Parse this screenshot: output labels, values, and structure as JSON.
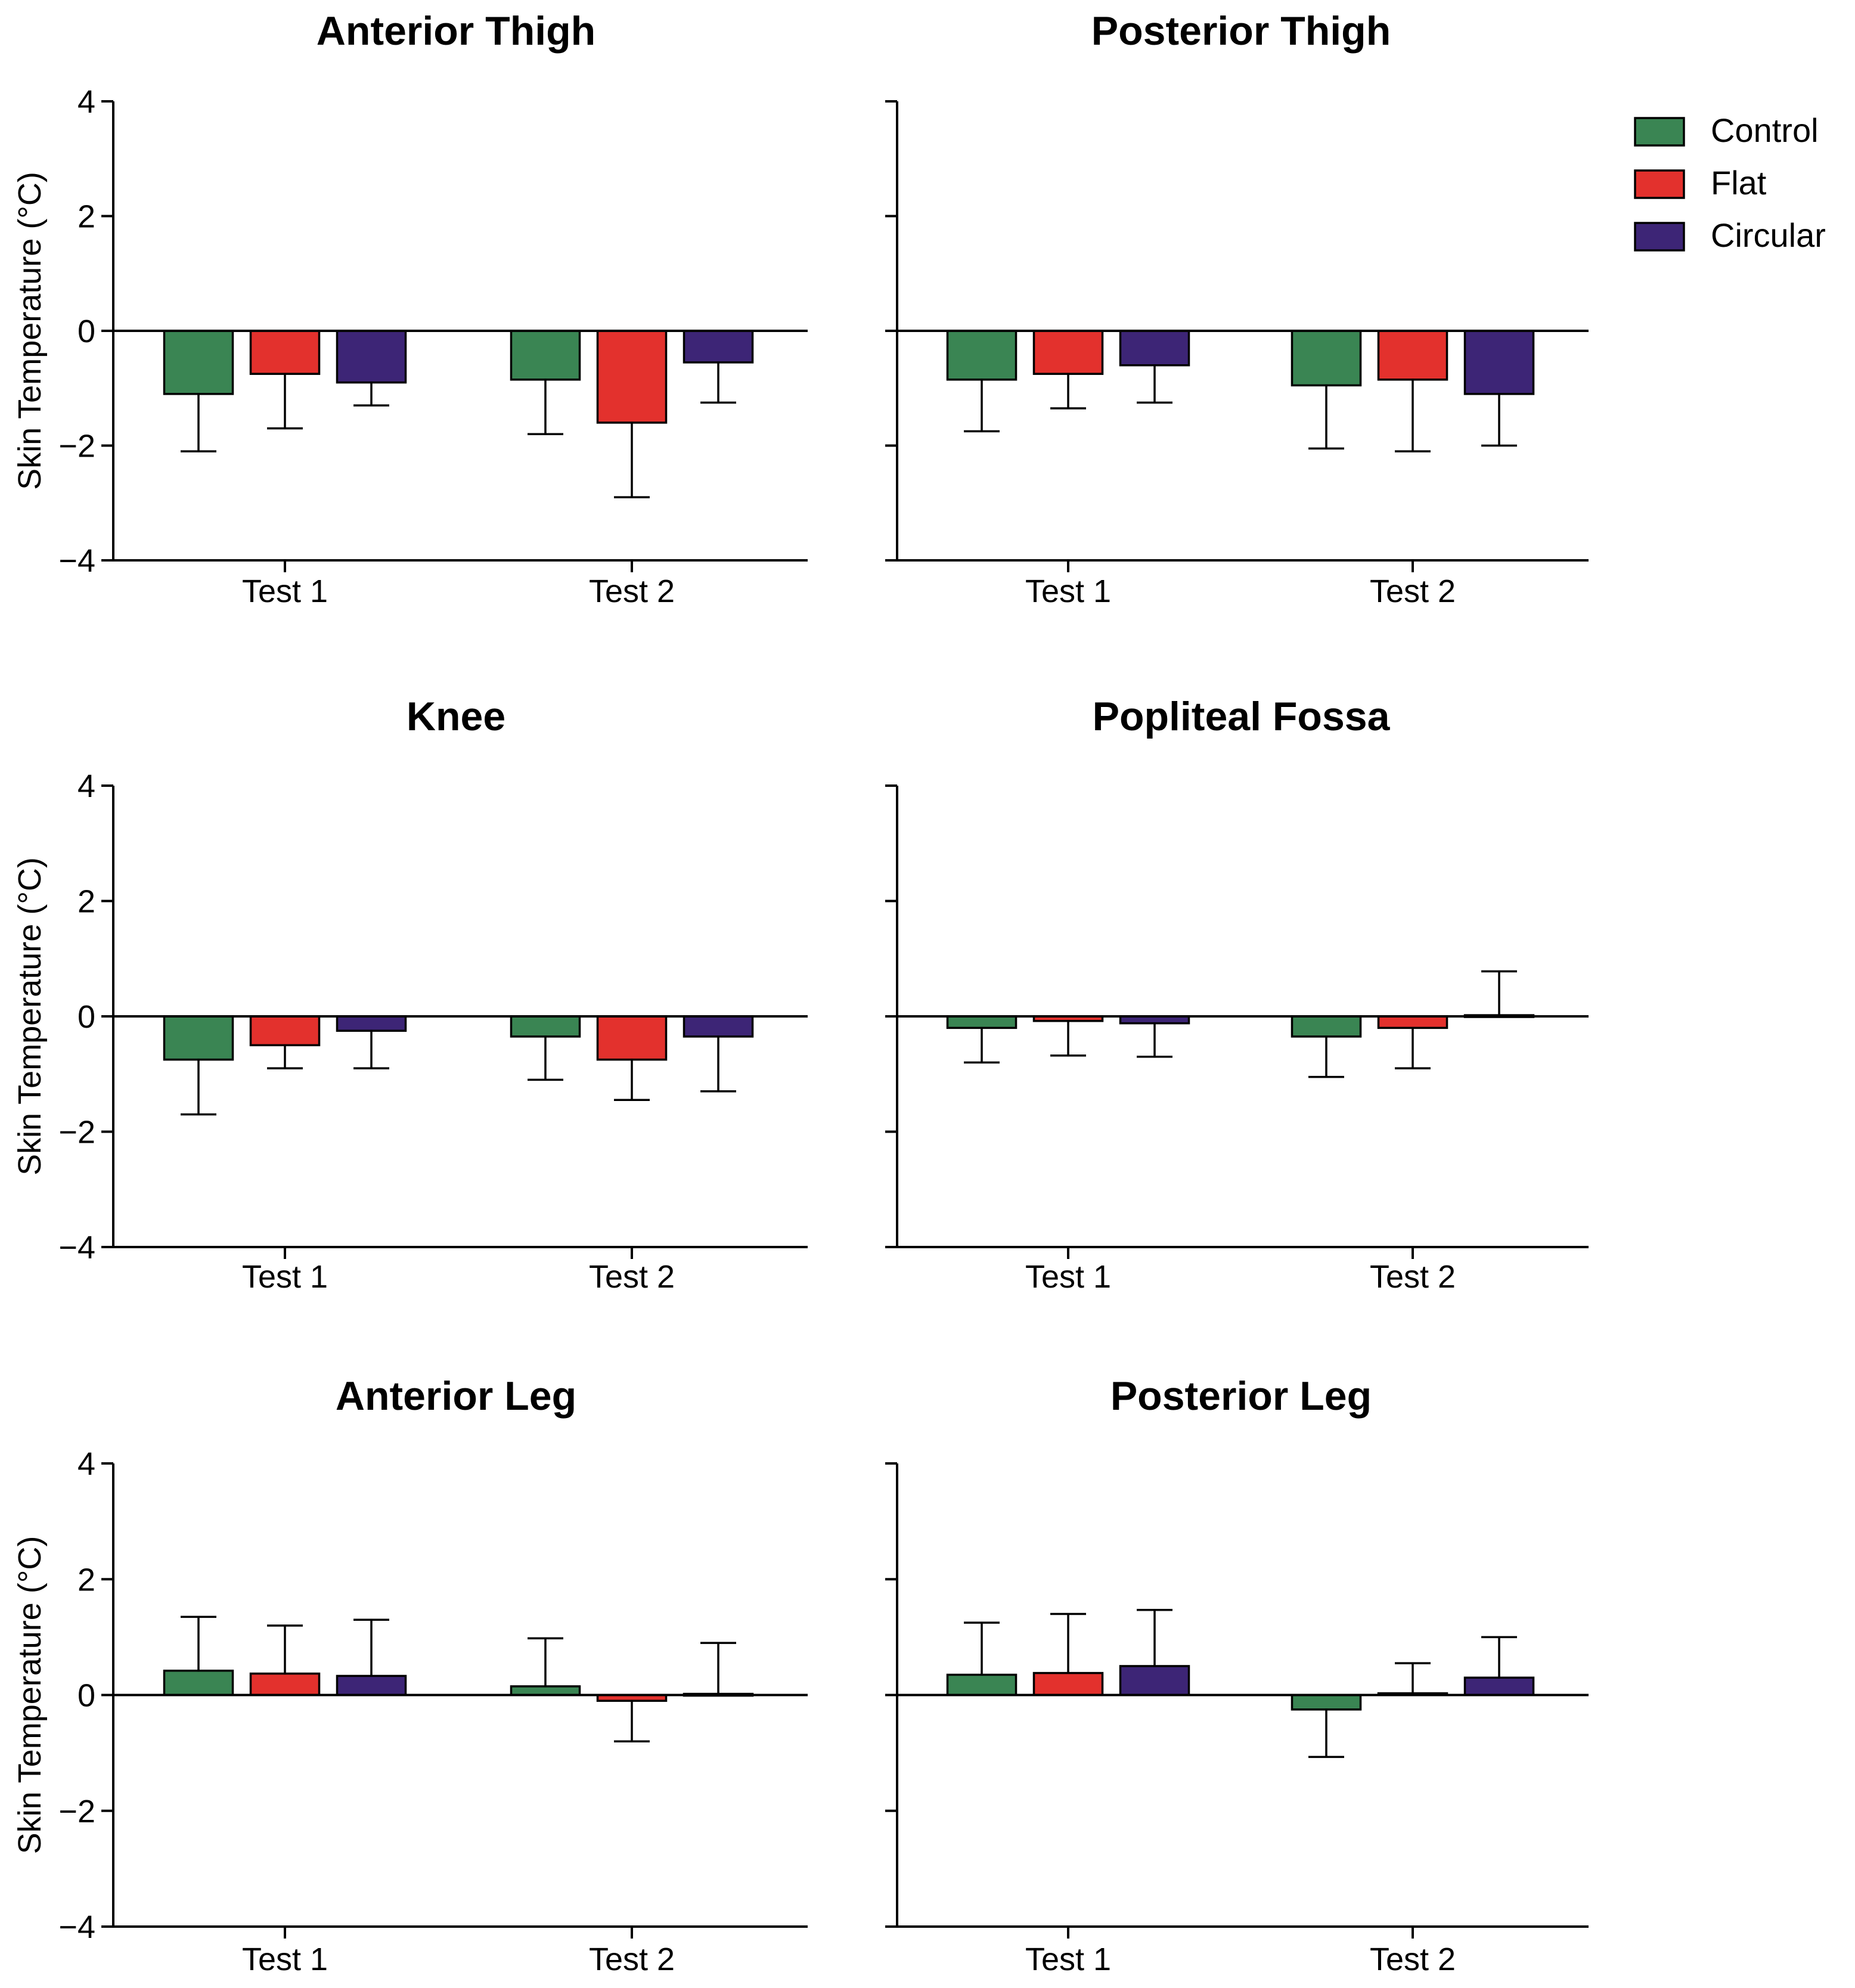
{
  "chart_data": {
    "type": "bar",
    "ylabel": "Skin Temperature (°C)",
    "ylim": [
      -4,
      4
    ],
    "yticks": [
      4,
      2,
      0,
      -2,
      -4
    ],
    "ytick_labels": [
      "4",
      "2",
      "0",
      "−2",
      "−4"
    ],
    "categories": [
      "Test 1",
      "Test 2"
    ],
    "legend": {
      "position": "top-right",
      "entries": [
        {
          "name": "Control",
          "color": "#3a8553"
        },
        {
          "name": "Flat",
          "color": "#e3312d"
        },
        {
          "name": "Circular",
          "color": "#3d2576"
        }
      ]
    },
    "panels": [
      {
        "title": "Anterior Thigh",
        "series": [
          {
            "name": "Control",
            "values": [
              -1.1,
              -0.85
            ],
            "errors": [
              1.0,
              0.95
            ]
          },
          {
            "name": "Flat",
            "values": [
              -0.75,
              -1.6
            ],
            "errors": [
              0.95,
              1.3
            ]
          },
          {
            "name": "Circular",
            "values": [
              -0.9,
              -0.55
            ],
            "errors": [
              0.4,
              0.7
            ]
          }
        ]
      },
      {
        "title": "Posterior Thigh",
        "series": [
          {
            "name": "Control",
            "values": [
              -0.85,
              -0.95
            ],
            "errors": [
              0.9,
              1.1
            ]
          },
          {
            "name": "Flat",
            "values": [
              -0.75,
              -0.85
            ],
            "errors": [
              0.6,
              1.25
            ]
          },
          {
            "name": "Circular",
            "values": [
              -0.6,
              -1.1
            ],
            "errors": [
              0.65,
              0.9
            ]
          }
        ]
      },
      {
        "title": "Knee",
        "series": [
          {
            "name": "Control",
            "values": [
              -0.75,
              -0.35
            ],
            "errors": [
              0.95,
              0.75
            ]
          },
          {
            "name": "Flat",
            "values": [
              -0.5,
              -0.75
            ],
            "errors": [
              0.4,
              0.7
            ]
          },
          {
            "name": "Circular",
            "values": [
              -0.25,
              -0.35
            ],
            "errors": [
              0.65,
              0.95
            ]
          }
        ]
      },
      {
        "title": "Popliteal Fossa",
        "series": [
          {
            "name": "Control",
            "values": [
              -0.2,
              -0.35
            ],
            "errors": [
              0.6,
              0.7
            ]
          },
          {
            "name": "Flat",
            "values": [
              -0.08,
              -0.2
            ],
            "errors": [
              0.6,
              0.7
            ]
          },
          {
            "name": "Circular",
            "values": [
              -0.12,
              0.02
            ],
            "errors": [
              0.58,
              0.76
            ]
          }
        ]
      },
      {
        "title": "Anterior Leg",
        "series": [
          {
            "name": "Control",
            "values": [
              0.42,
              0.15
            ],
            "errors": [
              0.93,
              0.83
            ]
          },
          {
            "name": "Flat",
            "values": [
              0.37,
              -0.1
            ],
            "errors": [
              0.83,
              0.7
            ]
          },
          {
            "name": "Circular",
            "values": [
              0.33,
              0.02
            ],
            "errors": [
              0.97,
              0.88
            ]
          }
        ]
      },
      {
        "title": "Posterior Leg",
        "series": [
          {
            "name": "Control",
            "values": [
              0.35,
              -0.25
            ],
            "errors": [
              0.9,
              0.82
            ]
          },
          {
            "name": "Flat",
            "values": [
              0.38,
              0.03
            ],
            "errors": [
              1.02,
              0.52
            ]
          },
          {
            "name": "Circular",
            "values": [
              0.5,
              0.3
            ],
            "errors": [
              0.97,
              0.7
            ]
          }
        ]
      }
    ]
  }
}
